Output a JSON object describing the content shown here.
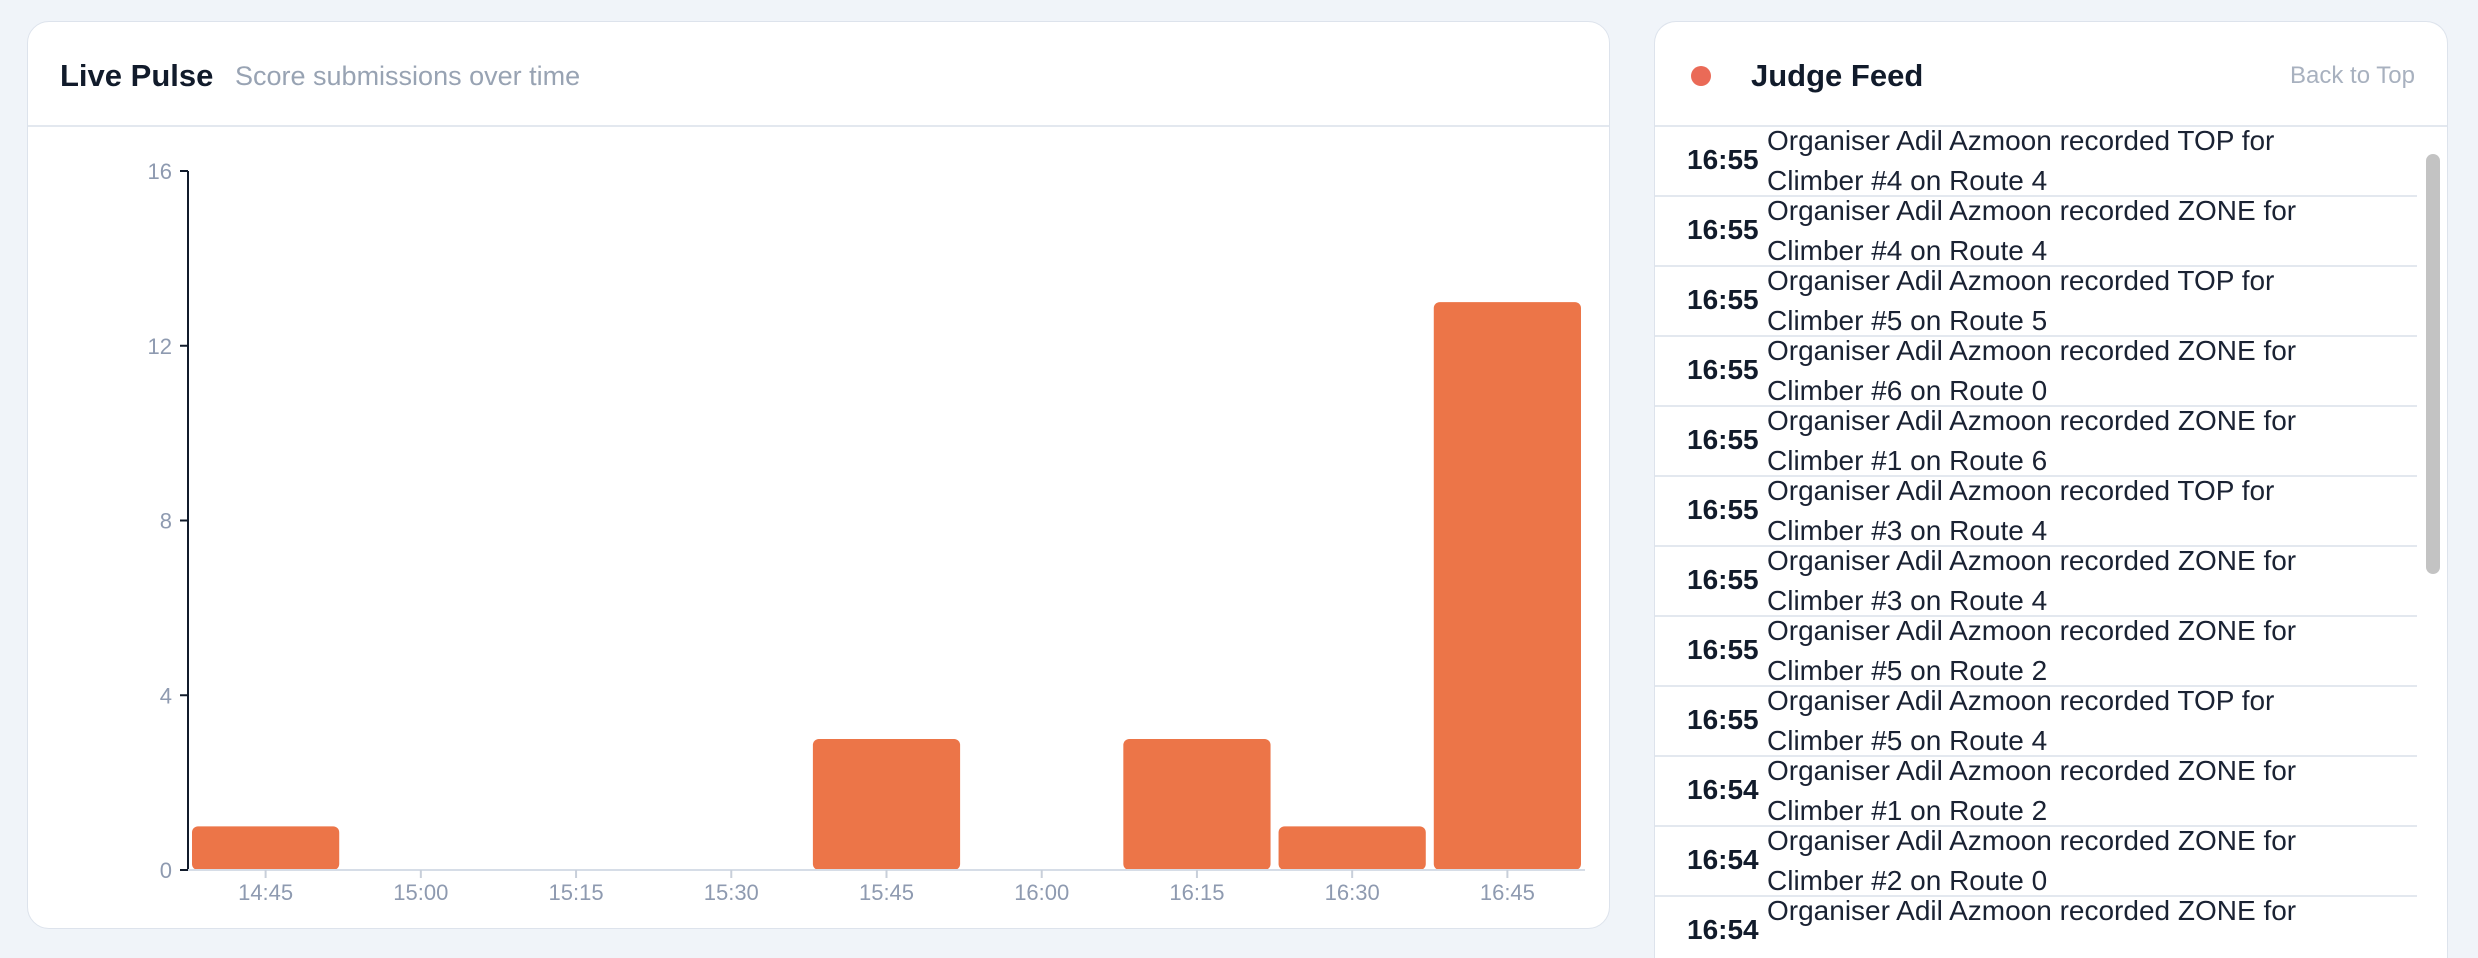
{
  "pulse": {
    "title": "Live Pulse",
    "subtitle": "Score submissions over time"
  },
  "chart_data": {
    "type": "bar",
    "categories": [
      "14:45",
      "15:00",
      "15:15",
      "15:30",
      "15:45",
      "16:00",
      "16:15",
      "16:30",
      "16:45"
    ],
    "values": [
      1,
      0,
      0,
      0,
      3,
      0,
      3,
      1,
      13
    ],
    "yticks": [
      0,
      4,
      8,
      12,
      16
    ],
    "ylim": [
      0,
      16
    ],
    "bar_color": "#ec7548",
    "grid": false
  },
  "feed": {
    "title": "Judge Feed",
    "back_to_top": "Back to Top",
    "dot_color": "#ea6a57",
    "items": [
      {
        "time": "16:55",
        "line1": "Organiser Adil Azmoon recorded TOP for",
        "line2": "Climber #4 on Route 4"
      },
      {
        "time": "16:55",
        "line1": "Organiser Adil Azmoon recorded ZONE for",
        "line2": "Climber #4 on Route 4"
      },
      {
        "time": "16:55",
        "line1": "Organiser Adil Azmoon recorded TOP for",
        "line2": "Climber #5 on Route 5"
      },
      {
        "time": "16:55",
        "line1": "Organiser Adil Azmoon recorded ZONE for",
        "line2": "Climber #6 on Route 0"
      },
      {
        "time": "16:55",
        "line1": "Organiser Adil Azmoon recorded ZONE for",
        "line2": "Climber #1 on Route 6"
      },
      {
        "time": "16:55",
        "line1": "Organiser Adil Azmoon recorded TOP for",
        "line2": "Climber #3 on Route 4"
      },
      {
        "time": "16:55",
        "line1": "Organiser Adil Azmoon recorded ZONE for",
        "line2": "Climber #3 on Route 4"
      },
      {
        "time": "16:55",
        "line1": "Organiser Adil Azmoon recorded ZONE for",
        "line2": "Climber #5 on Route 2"
      },
      {
        "time": "16:55",
        "line1": "Organiser Adil Azmoon recorded TOP for",
        "line2": "Climber #5 on Route 4"
      },
      {
        "time": "16:54",
        "line1": "Organiser Adil Azmoon recorded ZONE for",
        "line2": "Climber #1 on Route 2"
      },
      {
        "time": "16:54",
        "line1": "Organiser Adil Azmoon recorded ZONE for",
        "line2": "Climber #2 on Route 0"
      },
      {
        "time": "16:54",
        "line1": "Organiser Adil Azmoon recorded ZONE for",
        "line2": ""
      }
    ]
  }
}
